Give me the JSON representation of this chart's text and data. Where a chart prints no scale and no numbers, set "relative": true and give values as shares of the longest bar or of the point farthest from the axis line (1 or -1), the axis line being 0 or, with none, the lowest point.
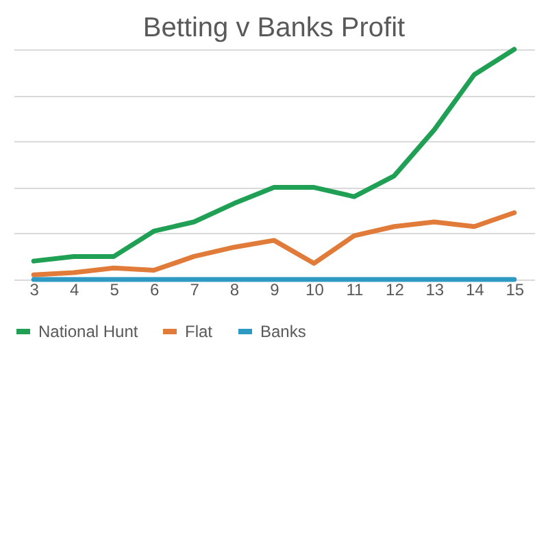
{
  "chart_data": {
    "type": "line",
    "title": "Betting v Banks Profit",
    "relative": true,
    "grid": "y",
    "legend": "bottom",
    "categories": [
      "3",
      "4",
      "5",
      "6",
      "7",
      "8",
      "9",
      "10",
      "11",
      "12",
      "13",
      "14",
      "15"
    ],
    "series": [
      {
        "name": "National Hunt",
        "color": "#1fa055",
        "values": [
          0.08,
          0.1,
          0.1,
          0.21,
          0.25,
          0.33,
          0.4,
          0.4,
          0.36,
          0.45,
          0.65,
          0.89,
          1
        ]
      },
      {
        "name": "Flat",
        "color": "#e07b39",
        "values": [
          0.02,
          0.03,
          0.05,
          0.04,
          0.1,
          0.14,
          0.17,
          0.07,
          0.19,
          0.23,
          0.25,
          0.23,
          0.29
        ]
      },
      {
        "name": "Banks",
        "color": "#2e9ac4",
        "values": [
          0,
          0,
          0,
          0,
          0,
          0,
          0,
          0,
          0,
          0,
          0,
          0,
          0
        ]
      }
    ]
  }
}
